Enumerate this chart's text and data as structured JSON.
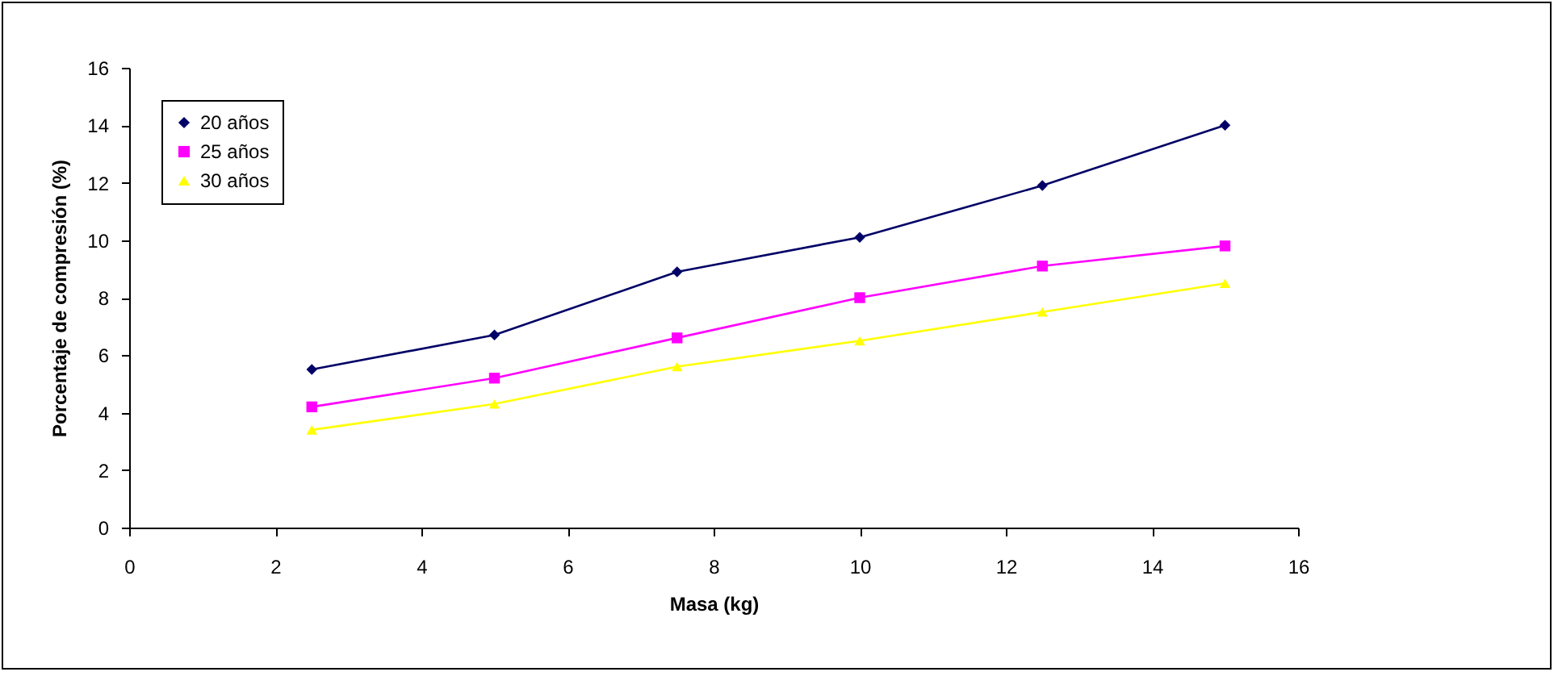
{
  "chart_data": {
    "type": "line",
    "xlabel": "Masa (kg)",
    "ylabel": "Porcentaje de compresión (%)",
    "x": [
      2.5,
      5,
      7.5,
      10,
      12.5,
      15
    ],
    "series": [
      {
        "name": "20 años",
        "color": "#000066",
        "marker": "diamond",
        "values": [
          5.5,
          6.7,
          8.9,
          10.1,
          11.9,
          14.0
        ]
      },
      {
        "name": "25 años",
        "color": "#ff00ff",
        "marker": "square",
        "values": [
          4.2,
          5.2,
          6.6,
          8.0,
          9.1,
          9.8
        ]
      },
      {
        "name": "30 años",
        "color": "#ffff00",
        "marker": "triangle",
        "values": [
          3.4,
          4.3,
          5.6,
          6.5,
          7.5,
          8.5
        ]
      }
    ],
    "xlim": [
      0,
      16
    ],
    "xticks": [
      0,
      2,
      4,
      6,
      8,
      10,
      12,
      14,
      16
    ],
    "ylim": [
      0,
      16
    ],
    "yticks": [
      0,
      2,
      4,
      6,
      8,
      10,
      12,
      14,
      16
    ],
    "grid": false,
    "legend": "top left",
    "line_style": "solid"
  }
}
